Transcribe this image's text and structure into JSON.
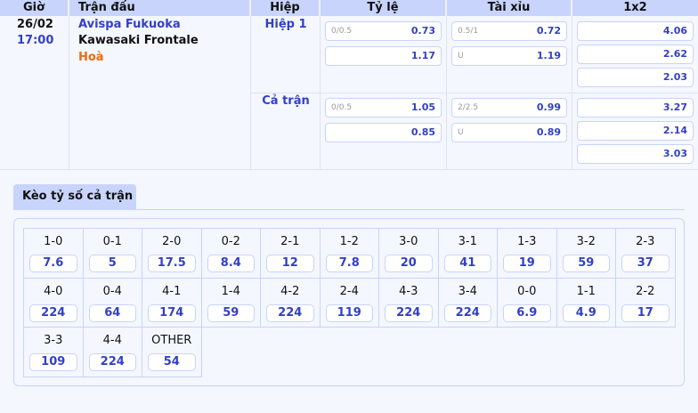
{
  "header": {
    "time": "Giờ",
    "match": "Trận đấu",
    "half": "Hiệp",
    "handicap": "Tỷ lệ",
    "overunder": "Tài xỉu",
    "x12": "1x2"
  },
  "match": {
    "date": "26/02",
    "time": "17:00",
    "home": "Avispa Fukuoka",
    "away": "Kawasaki Frontale",
    "draw": "Hoà"
  },
  "periods": [
    {
      "label": "Hiệp 1",
      "handicap": [
        {
          "line": "0/0.5",
          "odds": "0.73"
        },
        {
          "line": "",
          "odds": "1.17"
        }
      ],
      "overunder": [
        {
          "line": "0.5/1",
          "odds": "0.72"
        },
        {
          "line": "U",
          "odds": "1.19"
        }
      ],
      "x12": [
        "4.06",
        "2.62",
        "2.03"
      ]
    },
    {
      "label": "Cả trận",
      "handicap": [
        {
          "line": "0/0.5",
          "odds": "1.05"
        },
        {
          "line": "",
          "odds": "0.85"
        }
      ],
      "overunder": [
        {
          "line": "2/2.5",
          "odds": "0.99"
        },
        {
          "line": "U",
          "odds": "0.89"
        }
      ],
      "x12": [
        "3.27",
        "2.14",
        "3.03"
      ]
    }
  ],
  "correct_score": {
    "tab": "Kèo tỷ số cả trận",
    "items": [
      {
        "s": "1-0",
        "o": "7.6"
      },
      {
        "s": "0-1",
        "o": "5"
      },
      {
        "s": "2-0",
        "o": "17.5"
      },
      {
        "s": "0-2",
        "o": "8.4"
      },
      {
        "s": "2-1",
        "o": "12"
      },
      {
        "s": "1-2",
        "o": "7.8"
      },
      {
        "s": "3-0",
        "o": "20"
      },
      {
        "s": "3-1",
        "o": "41"
      },
      {
        "s": "1-3",
        "o": "19"
      },
      {
        "s": "3-2",
        "o": "59"
      },
      {
        "s": "2-3",
        "o": "37"
      },
      {
        "s": "4-0",
        "o": "224"
      },
      {
        "s": "0-4",
        "o": "64"
      },
      {
        "s": "4-1",
        "o": "174"
      },
      {
        "s": "1-4",
        "o": "59"
      },
      {
        "s": "4-2",
        "o": "224"
      },
      {
        "s": "2-4",
        "o": "119"
      },
      {
        "s": "4-3",
        "o": "224"
      },
      {
        "s": "3-4",
        "o": "224"
      },
      {
        "s": "0-0",
        "o": "6.9"
      },
      {
        "s": "1-1",
        "o": "4.9"
      },
      {
        "s": "2-2",
        "o": "17"
      },
      {
        "s": "3-3",
        "o": "109"
      },
      {
        "s": "4-4",
        "o": "224"
      },
      {
        "s": "OTHER",
        "o": "54"
      }
    ]
  }
}
